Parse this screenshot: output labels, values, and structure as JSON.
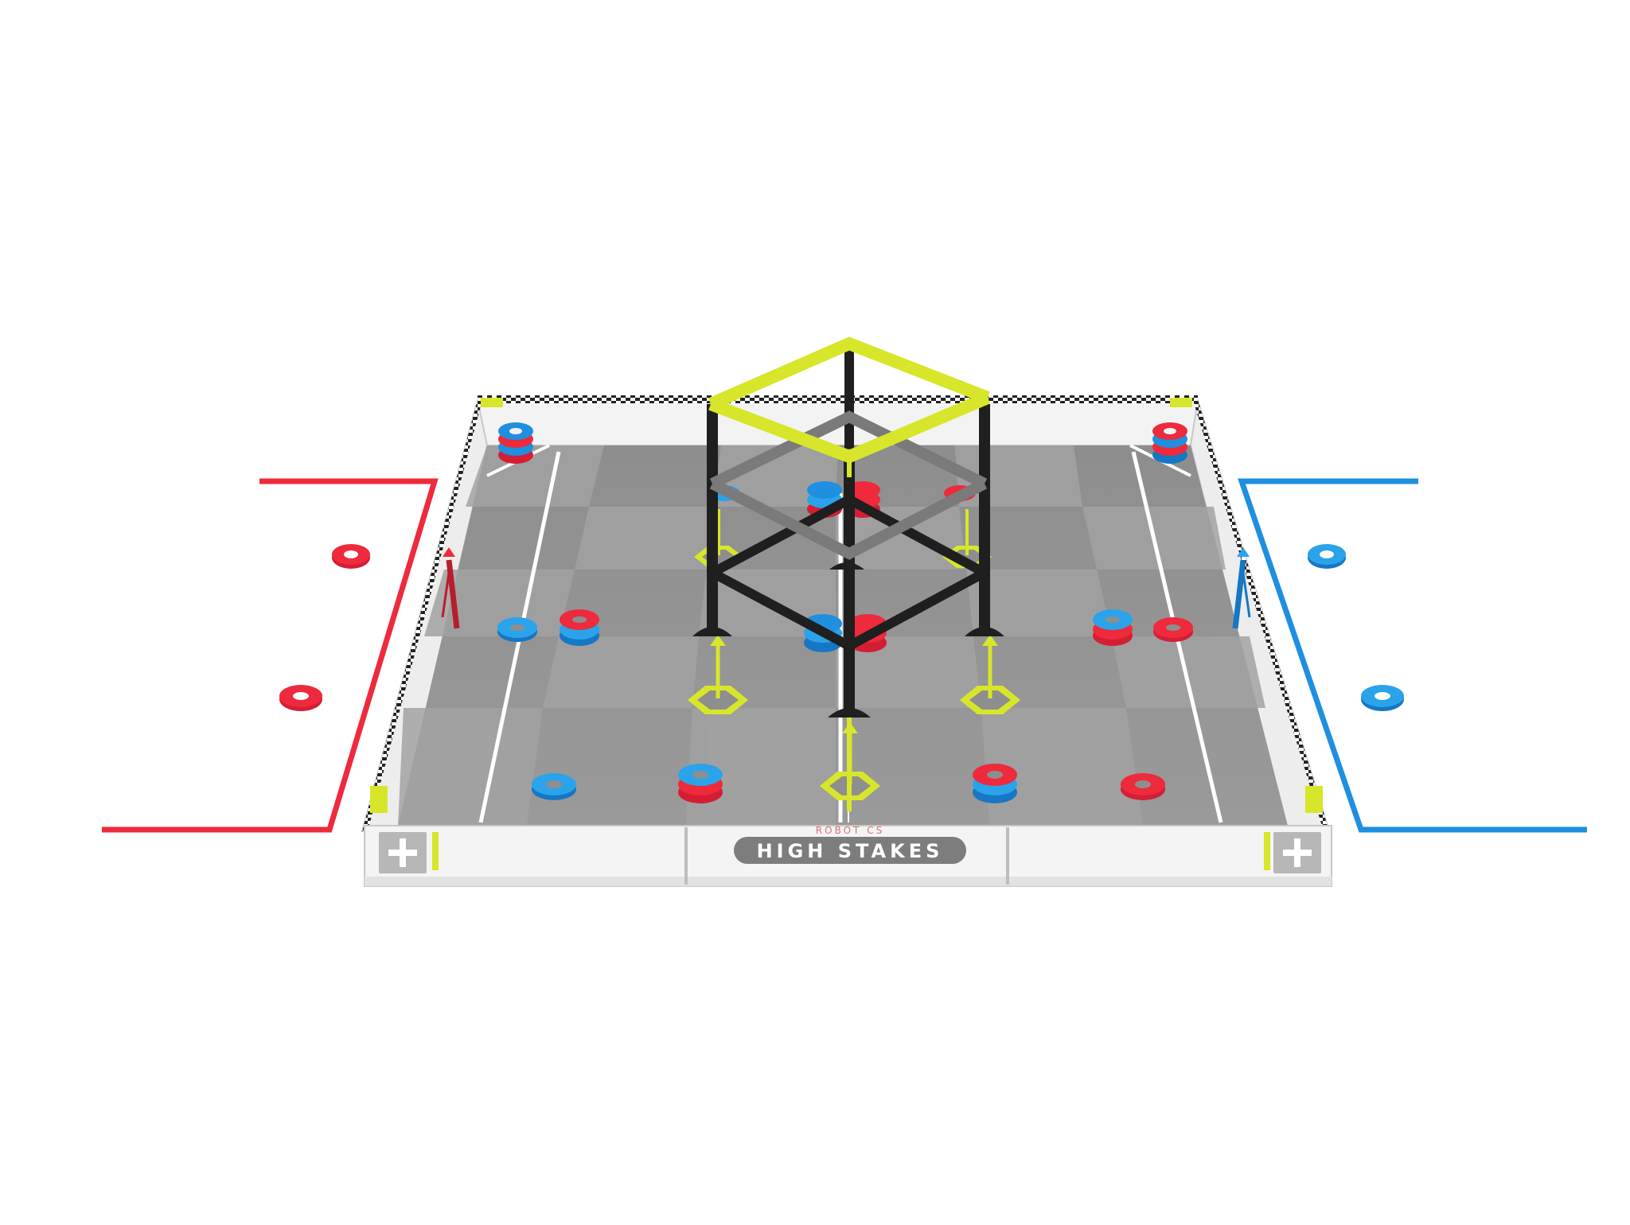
{
  "scene": {
    "title_plate": "HIGH STAKES",
    "brand_text": "ROBOT CS"
  },
  "colors": {
    "red_alliance": "#ee2a3c",
    "blue_alliance": "#1f8fe0",
    "tile_light": "#9d9d9d",
    "tile_dark": "#8a8a8a",
    "wall": "#f2f2f2",
    "frame_yellow": "#d7e62a",
    "frame_black": "#1f1f1f",
    "frame_gray": "#7a7a7a"
  },
  "icons": {
    "corner_marker": "plus-icon"
  }
}
